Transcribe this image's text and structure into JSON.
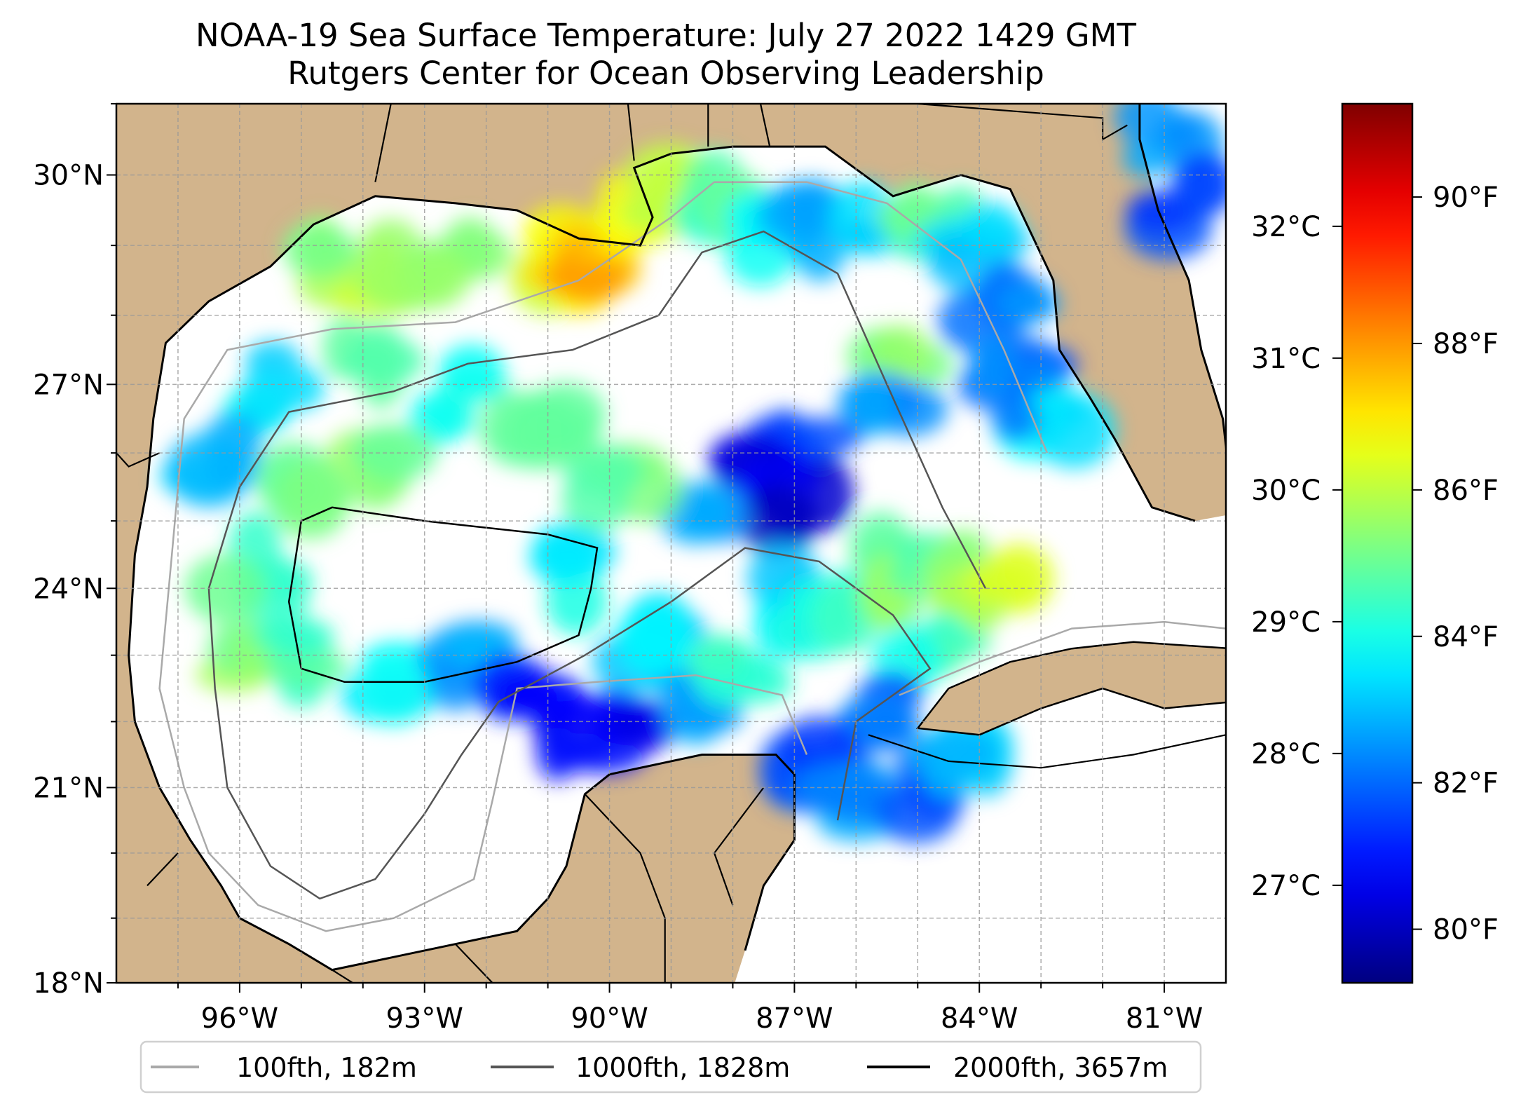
{
  "title": {
    "line1": "NOAA-19 Sea Surface Temperature: July 27 2022 1429 GMT",
    "line2": "Rutgers Center for Ocean Observing Leadership"
  },
  "colors": {
    "land": "#d2b48c",
    "water": "#ffffff",
    "lakes": "#9db4e0",
    "contour_100": "#a9a9a9",
    "contour_1000": "#555555",
    "contour_2000": "#000000"
  },
  "chart_data": {
    "type": "heatmap",
    "title": "NOAA-19 Sea Surface Temperature: July 27 2022 1429 GMT",
    "subtitle": "Rutgers Center for Ocean Observing Leadership",
    "colormap": "jet",
    "xlim": [
      -98,
      -80
    ],
    "ylim": [
      18,
      31
    ],
    "grid": true,
    "x_ticks": [
      {
        "value": -96,
        "label": "96°W"
      },
      {
        "value": -93,
        "label": "93°W"
      },
      {
        "value": -90,
        "label": "90°W"
      },
      {
        "value": -87,
        "label": "87°W"
      },
      {
        "value": -84,
        "label": "84°W"
      },
      {
        "value": -81,
        "label": "81°W"
      }
    ],
    "y_ticks": [
      {
        "value": 18,
        "label": "18°N"
      },
      {
        "value": 21,
        "label": "21°N"
      },
      {
        "value": 24,
        "label": "24°N"
      },
      {
        "value": 27,
        "label": "27°N"
      },
      {
        "value": 30,
        "label": "30°N"
      }
    ],
    "colorbar": {
      "range_c": [
        26.26,
        32.93
      ],
      "celsius_ticks": [
        {
          "value": 27,
          "label": "27°C"
        },
        {
          "value": 28,
          "label": "28°C"
        },
        {
          "value": 29,
          "label": "29°C"
        },
        {
          "value": 30,
          "label": "30°C"
        },
        {
          "value": 31,
          "label": "31°C"
        },
        {
          "value": 32,
          "label": "32°C"
        }
      ],
      "fahrenheit_ticks": [
        {
          "value": 80,
          "label": "80°F"
        },
        {
          "value": 82,
          "label": "82°F"
        },
        {
          "value": 84,
          "label": "84°F"
        },
        {
          "value": 86,
          "label": "86°F"
        },
        {
          "value": 88,
          "label": "88°F"
        },
        {
          "value": 90,
          "label": "90°F"
        }
      ]
    },
    "sst_samples_c": [
      [
        -94.5,
        28.8,
        29.7
      ],
      [
        -93.5,
        28.6,
        29.9
      ],
      [
        -92.5,
        28.9,
        29.8
      ],
      [
        -91.2,
        28.8,
        30.2
      ],
      [
        -90.5,
        28.7,
        30.6
      ],
      [
        -90.0,
        28.5,
        30.9
      ],
      [
        -89.5,
        29.6,
        30.4
      ],
      [
        -89.0,
        29.8,
        30.1
      ],
      [
        -88.3,
        29.5,
        29.2
      ],
      [
        -87.5,
        29.2,
        28.6
      ],
      [
        -86.6,
        29.3,
        28.3
      ],
      [
        -85.5,
        29.2,
        28.6
      ],
      [
        -84.7,
        29.3,
        29.3
      ],
      [
        -84.0,
        28.9,
        28.5
      ],
      [
        -83.6,
        28.2,
        27.9
      ],
      [
        -83.2,
        27.4,
        27.6
      ],
      [
        -82.8,
        26.6,
        28.8
      ],
      [
        -83.6,
        26.9,
        28.0
      ],
      [
        -85.2,
        27.6,
        29.6
      ],
      [
        -85.5,
        26.5,
        28.1
      ],
      [
        -86.8,
        26.3,
        27.5
      ],
      [
        -87.6,
        25.6,
        27.0
      ],
      [
        -86.9,
        25.3,
        26.9
      ],
      [
        -88.6,
        25.5,
        28.2
      ],
      [
        -89.8,
        25.6,
        29.4
      ],
      [
        -91.0,
        26.5,
        29.5
      ],
      [
        -92.5,
        26.8,
        29.0
      ],
      [
        -93.5,
        25.9,
        29.6
      ],
      [
        -95.0,
        25.5,
        29.4
      ],
      [
        -95.9,
        24.3,
        29.3
      ],
      [
        -95.8,
        23.0,
        29.7
      ],
      [
        -94.8,
        22.9,
        29.3
      ],
      [
        -93.7,
        22.7,
        28.6
      ],
      [
        -92.3,
        22.9,
        28.2
      ],
      [
        -91.3,
        22.3,
        27.2
      ],
      [
        -90.5,
        21.9,
        27.0
      ],
      [
        -89.5,
        21.9,
        27.1
      ],
      [
        -88.8,
        22.4,
        28.0
      ],
      [
        -88.0,
        23.0,
        29.1
      ],
      [
        -87.3,
        23.8,
        28.6
      ],
      [
        -86.5,
        23.6,
        29.0
      ],
      [
        -85.6,
        24.2,
        29.6
      ],
      [
        -84.6,
        24.4,
        29.5
      ],
      [
        -83.8,
        24.2,
        30.0
      ],
      [
        -84.8,
        23.0,
        29.1
      ],
      [
        -85.8,
        22.2,
        27.8
      ],
      [
        -86.8,
        21.5,
        27.6
      ],
      [
        -86.2,
        20.8,
        28.1
      ],
      [
        -85.0,
        21.0,
        27.8
      ],
      [
        -84.2,
        21.4,
        28.4
      ],
      [
        -81.0,
        30.6,
        28.0
      ],
      [
        -80.6,
        29.5,
        27.5
      ],
      [
        -90.8,
        24.2,
        28.8
      ],
      [
        -89.3,
        23.2,
        28.5
      ],
      [
        -94.0,
        27.4,
        29.5
      ],
      [
        -95.3,
        27.0,
        28.6
      ],
      [
        -96.2,
        26.0,
        28.4
      ]
    ]
  },
  "legend": {
    "items": [
      {
        "label": "100fth, 182m",
        "color": "#a9a9a9"
      },
      {
        "label": "1000fth, 1828m",
        "color": "#555555"
      },
      {
        "label": "2000fth, 3657m",
        "color": "#000000"
      }
    ]
  }
}
